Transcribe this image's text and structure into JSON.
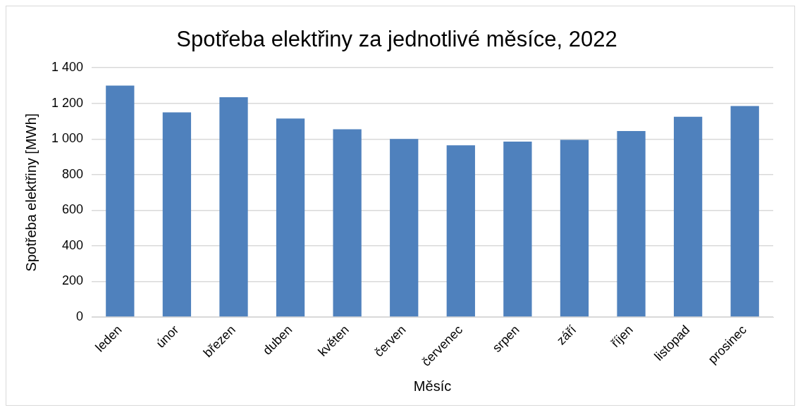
{
  "chart_data": {
    "type": "bar",
    "title": "Spotřeba elektřiny za jednotlivé měsíce, 2022",
    "xlabel": "Měsíc",
    "ylabel": "Spotřeba elektřiny [MWh]",
    "categories": [
      "leden",
      "únor",
      "březen",
      "duben",
      "květen",
      "červen",
      "červenec",
      "srpen",
      "září",
      "říjen",
      "listopad",
      "prosinec"
    ],
    "values": [
      1300,
      1150,
      1235,
      1115,
      1055,
      1000,
      965,
      985,
      995,
      1045,
      1125,
      1185
    ],
    "color": "#4f81bd",
    "ylim": [
      0,
      1400
    ],
    "yticks": [
      0,
      200,
      400,
      600,
      800,
      {
        "value": 1000,
        "label": "1 000"
      },
      {
        "value": 1200,
        "label": "1 200"
      },
      {
        "value": 1400,
        "label": "1 400"
      }
    ],
    "grid": "y",
    "legend": false
  }
}
